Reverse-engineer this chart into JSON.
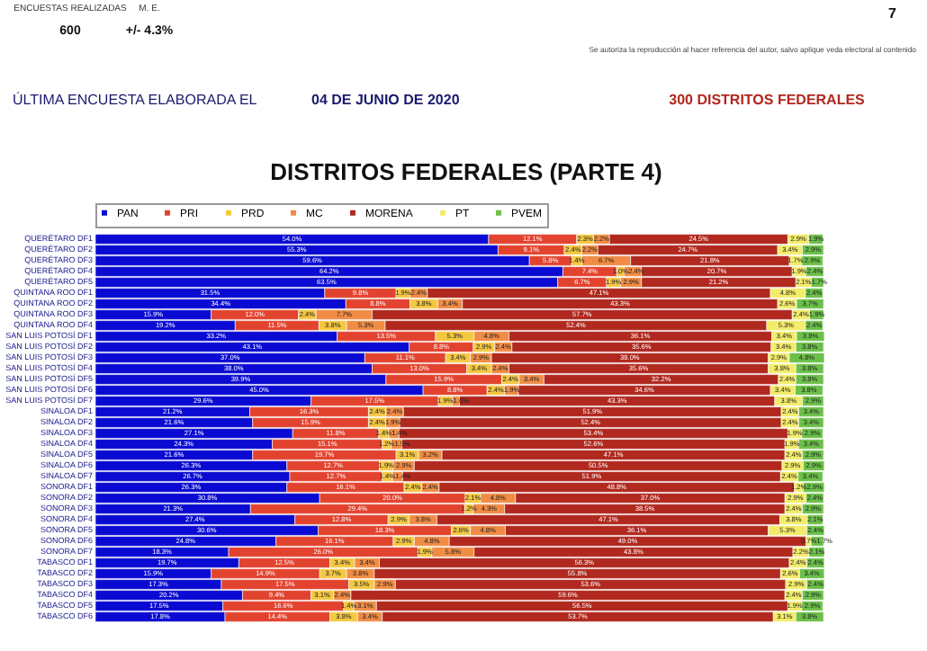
{
  "chart_data": {
    "type": "bar",
    "orientation": "horizontal",
    "stacked": true,
    "legend": "top",
    "title": "DISTRITOS FEDERALES (PARTE 4)",
    "annotations": [
      "ENCUESTAS REALIZADAS",
      "M. E.",
      "600",
      "+/- 4.3%",
      "7",
      "Se autoriza la reproducción al hacer referencia del autor, salvo aplique veda electoral al contenido",
      "ÚLTIMA ENCUESTA ELABORADA EL",
      "04 DE JUNIO DE 2020",
      "300 DISTRITOS FEDERALES"
    ],
    "categories": [
      "QUERÉTARO DF1",
      "QUERÉTARO DF2",
      "QUERÉTARO DF3",
      "QUERÉTARO DF4",
      "QUERÉTARO DF5",
      "QUINTANA ROO DF1",
      "QUINTANA ROO DF2",
      "QUINTANA ROO DF3",
      "QUINTANA ROO DF4",
      "SAN LUIS POTOSÍ DF1",
      "SAN LUIS POTOSÍ DF2",
      "SAN LUIS POTOSÍ DF3",
      "SAN LUIS POTOSÍ DF4",
      "SAN LUIS POTOSÍ DF5",
      "SAN LUIS POTOSÍ DF6",
      "SAN LUIS POTOSÍ DF7",
      "SINALOA DF1",
      "SINALOA DF2",
      "SINALOA DF3",
      "SINALOA DF4",
      "SINALOA DF5",
      "SINALOA DF6",
      "SINALOA DF7",
      "SONORA DF1",
      "SONORA DF2",
      "SONORA DF3",
      "SONORA DF4",
      "SONORA DF5",
      "SONORA DF6",
      "SONORA DF7",
      "TABASCO DF1",
      "TABASCO DF2",
      "TABASCO DF3",
      "TABASCO DF4",
      "TABASCO DF5",
      "TABASCO DF6"
    ],
    "series": [
      {
        "name": "PAN",
        "color": "#0a0ad2",
        "values": [
          54.0,
          55.3,
          59.6,
          64.2,
          63.5,
          31.5,
          34.4,
          15.9,
          19.2,
          33.2,
          43.1,
          37.0,
          38.0,
          39.9,
          45.0,
          29.6,
          21.2,
          21.6,
          27.1,
          24.3,
          21.6,
          26.3,
          26.7,
          26.3,
          30.8,
          21.3,
          27.4,
          30.6,
          24.8,
          18.3,
          19.7,
          15.9,
          17.3,
          20.2,
          17.5,
          17.8
        ],
        "value_labels": [
          "54.0%",
          "55.3%",
          "59.6%",
          "64.2%",
          "63.5%",
          "31.5%",
          "34.4%",
          "15.9%",
          "19.2%",
          "33.2%",
          "43.1%",
          "37.0%",
          "38.0%",
          "39.9%",
          "45.0%",
          "29.6%",
          "21.2%",
          "21.6%",
          "27.1%",
          "24.3%",
          "21.6%",
          "26.3%",
          "26.7%",
          "26.3%",
          "30.8%",
          "21.3%",
          "27.4%",
          "30.6%",
          "24.8%",
          "18.3%",
          "19.7%",
          "15.9%",
          "17.3%",
          "20.2%",
          "17.5%",
          "17.8%"
        ]
      },
      {
        "name": "PRI",
        "color": "#e2432f",
        "values": [
          12.1,
          9.1,
          5.8,
          7.4,
          6.7,
          9.8,
          8.8,
          12.0,
          11.5,
          13.5,
          8.8,
          11.1,
          13.0,
          15.9,
          8.8,
          17.5,
          16.3,
          15.9,
          11.8,
          15.1,
          19.7,
          12.7,
          12.7,
          16.1,
          20.0,
          29.4,
          12.8,
          18.3,
          16.1,
          26.0,
          12.5,
          14.9,
          17.5,
          9.4,
          16.6,
          14.4
        ],
        "value_labels": [
          "12.1%",
          "9.1%",
          "5.8%",
          "7.4%",
          "6.7%",
          "9.8%",
          "8.8%",
          "12.0%",
          "11.5%",
          "13.5%",
          "8.8%",
          "11.1%",
          "13.0%",
          "15.9%",
          "8.8%",
          "17.5%",
          "16.3%",
          "15.9%",
          "11.8%",
          "15.1%",
          "19.7%",
          "12.7%",
          "12.7%",
          "16.1%",
          "20.0%",
          "29.4%",
          "12.8%",
          "18.3%",
          "16.1%",
          "26.0%",
          "12.5%",
          "14.9%",
          "17.5%",
          "9.4%",
          "16.6%",
          "14.4%"
        ]
      },
      {
        "name": "PRD",
        "color": "#f5c842",
        "values": [
          2.3,
          2.4,
          1.4,
          1.0,
          1.9,
          1.9,
          3.8,
          2.4,
          3.8,
          5.3,
          2.9,
          3.4,
          3.4,
          2.4,
          2.4,
          1.9,
          2.4,
          2.4,
          1.4,
          1.2,
          3.1,
          1.9,
          1.4,
          2.4,
          2.1,
          1.2,
          2.9,
          2.6,
          2.9,
          1.9,
          3.4,
          3.7,
          3.5,
          3.1,
          1.4,
          3.8
        ],
        "value_labels": [
          "2.3%",
          "2.4%",
          "1.4%",
          "1.0%",
          "1.9%",
          "1.9%",
          "3.8%",
          "2.4%",
          "3.8%",
          "5.3%",
          "2.9%",
          "3.4%",
          "3.4%",
          "2.4%",
          "2.4%",
          "1.9%",
          "2.4%",
          "2.4%",
          "1.4%",
          "1.2%",
          "3.1%",
          "1.9%",
          "1.4%",
          "2.4%",
          "2.1%",
          "1.2%",
          "2.9%",
          "2.6%",
          "2.9%",
          "1.9%",
          "3.4%",
          "3.7%",
          "3.5%",
          "3.1%",
          "1.4%",
          "3.8%"
        ]
      },
      {
        "name": "MC",
        "color": "#f08c45",
        "values": [
          2.2,
          2.2,
          6.7,
          2.4,
          2.9,
          2.4,
          3.4,
          7.7,
          5.3,
          4.8,
          2.4,
          2.9,
          2.4,
          3.4,
          1.9,
          1.0,
          2.4,
          1.9,
          1.4,
          1.5,
          3.2,
          2.9,
          1.4,
          2.4,
          4.8,
          4.3,
          3.8,
          4.8,
          4.8,
          5.8,
          3.4,
          3.8,
          2.9,
          2.4,
          3.1,
          3.4
        ],
        "value_labels": [
          "2.2%",
          "2.2%",
          "6.7%",
          "2.4%",
          "2.9%",
          "2.4%",
          "3.4%",
          "7.7%",
          "5.3%",
          "4.8%",
          "2.4%",
          "2.9%",
          "2.4%",
          "3.4%",
          "1.9%",
          "1.0%",
          "2.4%",
          "1.9%",
          "1.4%",
          "1.5%",
          "3.2%",
          "2.9%",
          "1.4%",
          "2.4%",
          "4.8%",
          "4.3%",
          "3.8%",
          "4.8%",
          "4.8%",
          "5.8%",
          "3.4%",
          "3.8%",
          "2.9%",
          "2.4%",
          "3.1%",
          "3.4%"
        ]
      },
      {
        "name": "MORENA",
        "color": "#b0281e",
        "values": [
          24.5,
          24.7,
          21.8,
          20.7,
          21.2,
          47.1,
          43.3,
          57.7,
          52.4,
          36.1,
          35.6,
          38.0,
          35.6,
          32.2,
          34.6,
          43.3,
          51.9,
          52.4,
          53.4,
          52.6,
          47.1,
          50.5,
          51.9,
          48.8,
          37.0,
          38.5,
          47.1,
          36.1,
          49.0,
          43.8,
          56.3,
          55.8,
          53.6,
          59.6,
          56.5,
          53.7
        ],
        "value_labels": [
          "24.5%",
          "24.7%",
          "21.8%",
          "20.7%",
          "21.2%",
          "47.1%",
          "43.3%",
          "57.7%",
          "52.4%",
          "36.1%",
          "35.6%",
          "38.0%",
          "35.6%",
          "32.2%",
          "34.6%",
          "43.3%",
          "51.9%",
          "52.4%",
          "53.4%",
          "52.6%",
          "47.1%",
          "50.5%",
          "51.9%",
          "48.8%",
          "37.0%",
          "38.5%",
          "47.1%",
          "36.1%",
          "49.0%",
          "43.8%",
          "56.3%",
          "55.8%",
          "53.6%",
          "59.6%",
          "56.5%",
          "53.7%"
        ]
      },
      {
        "name": "PT",
        "color": "#f3ec6a",
        "values": [
          2.9,
          3.4,
          1.7,
          1.9,
          2.1,
          4.8,
          2.6,
          2.4,
          5.3,
          3.4,
          3.4,
          2.9,
          3.8,
          2.4,
          3.4,
          3.8,
          2.4,
          2.4,
          1.9,
          1.9,
          2.4,
          2.9,
          2.4,
          1.2,
          2.9,
          2.4,
          3.8,
          5.3,
          0.7,
          2.2,
          2.4,
          2.6,
          2.9,
          2.4,
          1.9,
          3.1
        ],
        "value_labels": [
          "2.9%",
          "3.4%",
          "1.7%",
          "1.9%",
          "2.1%",
          "4.8%",
          "2.6%",
          "2.4%",
          "5.3%",
          "3.4%",
          "3.4%",
          "2.9%",
          "3.8%",
          "2.4%",
          "3.4%",
          "3.8%",
          "2.4%",
          "2.4%",
          "1.9%",
          "1.9%",
          "2.4%",
          "2.9%",
          "2.4%",
          "1.2%",
          "2.9%",
          "2.4%",
          "3.8%",
          "5.3%",
          "0.7%",
          "2.2%",
          "2.4%",
          "2.6%",
          "2.9%",
          "2.4%",
          "1.9%",
          "3.1%"
        ]
      },
      {
        "name": "PVEM",
        "color": "#6cc04a",
        "values": [
          1.9,
          2.9,
          2.9,
          2.4,
          1.7,
          2.4,
          3.7,
          1.9,
          2.4,
          3.8,
          3.8,
          4.8,
          3.8,
          3.8,
          3.8,
          2.9,
          3.4,
          3.4,
          2.9,
          3.4,
          2.9,
          2.9,
          3.4,
          2.9,
          2.4,
          2.9,
          2.1,
          2.4,
          1.7,
          2.1,
          2.4,
          3.4,
          2.4,
          2.9,
          2.9,
          3.8
        ],
        "value_labels": [
          "1.9%",
          "2.9%",
          "2.9%",
          "2.4%",
          "1.7%",
          "2.4%",
          "3.7%",
          "1.9%",
          "2.4%",
          "3.8%",
          "3.8%",
          "4.8%",
          "3.8%",
          "3.8%",
          "3.8%",
          "2.9%",
          "3.4%",
          "3.4%",
          "2.9%",
          "3.4%",
          "2.9%",
          "2.9%",
          "3.4%",
          "2.9%",
          "2.4%",
          "2.9%",
          "2.1%",
          "2.4%",
          "1.7%",
          "2.1%",
          "2.4%",
          "3.4%",
          "2.4%",
          "2.9%",
          "2.9%",
          "3.8%"
        ]
      }
    ]
  }
}
